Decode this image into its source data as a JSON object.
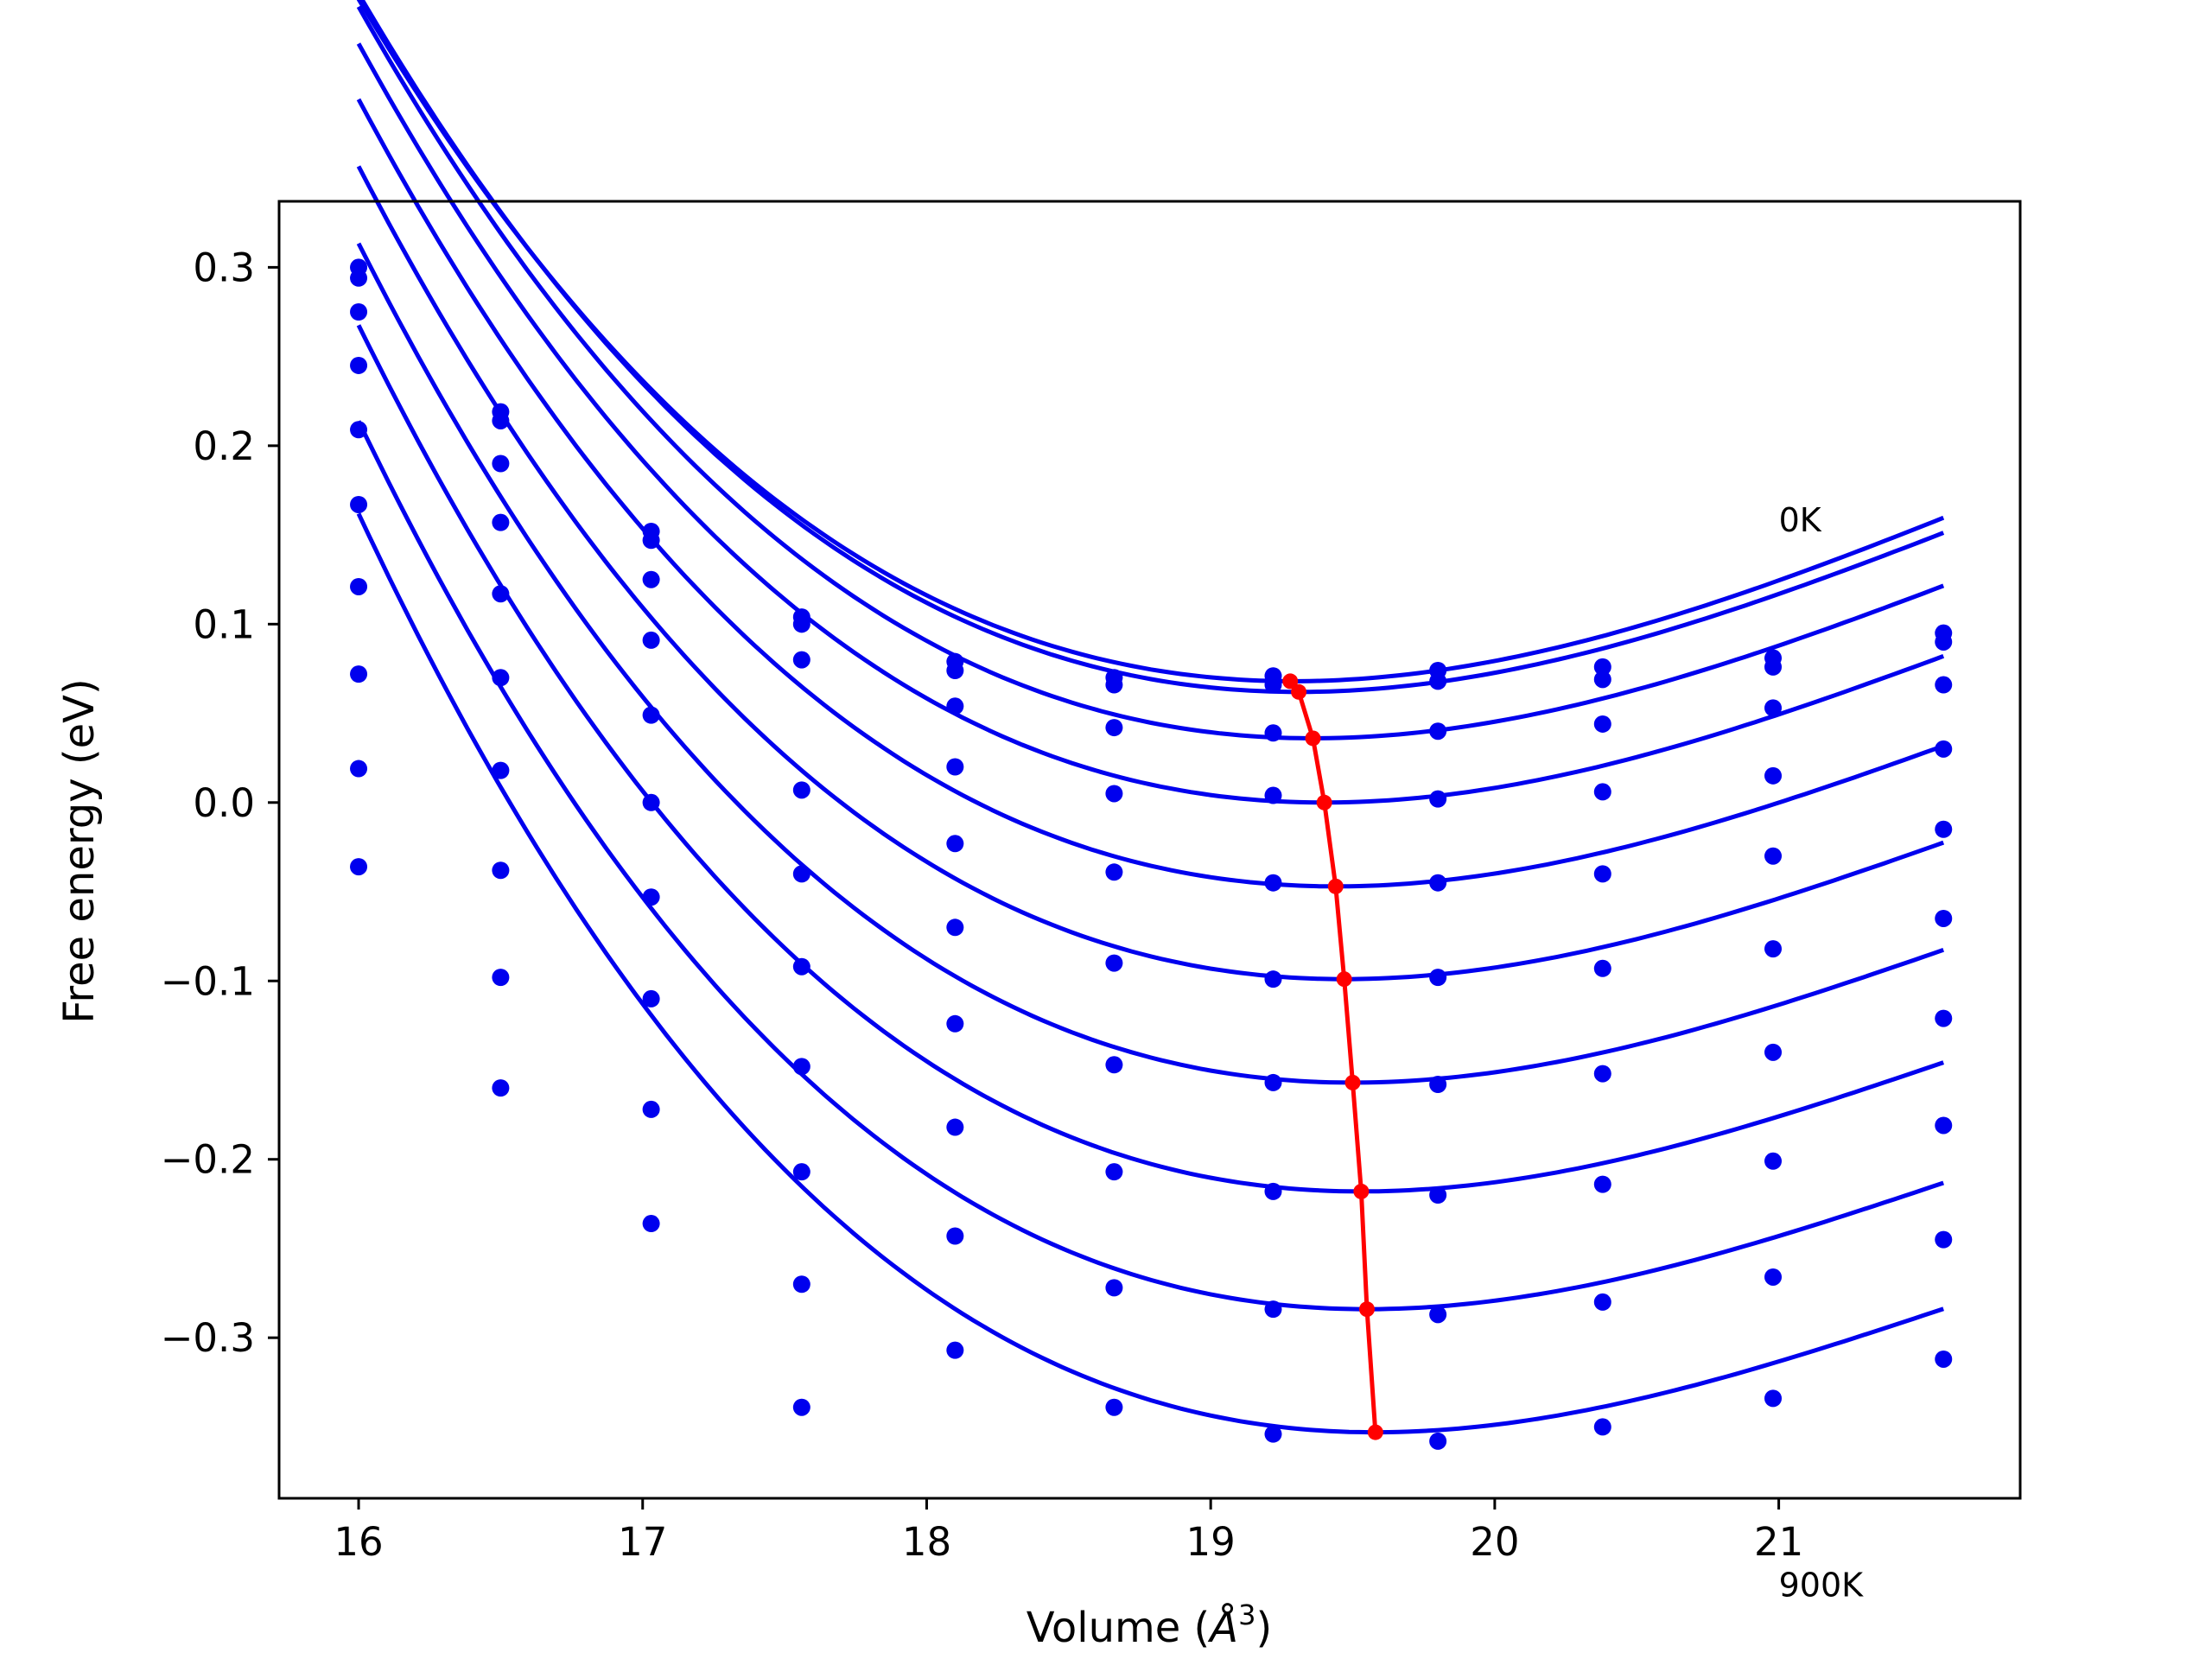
{
  "chart_data": {
    "type": "line",
    "xlabel_main": "Volume (",
    "xlabel_unit": "Å",
    "xlabel_sup": "3",
    "xlabel_end": ")",
    "ylabel": "Free energy (eV)",
    "xlim": [
      15.72,
      21.85
    ],
    "ylim": [
      -0.39,
      0.337
    ],
    "xticks": [
      16,
      17,
      18,
      19,
      20,
      21
    ],
    "xtick_labels": [
      "16",
      "17",
      "18",
      "19",
      "20",
      "21"
    ],
    "yticks": [
      0.3,
      0.2,
      0.1,
      0.0,
      -0.1,
      -0.2,
      -0.3
    ],
    "ytick_labels": [
      "0.3",
      "0.2",
      "0.1",
      "0.0",
      "−0.1",
      "−0.2",
      "−0.3"
    ],
    "annotations": [
      {
        "text": "0K",
        "x": 21.0,
        "y": 0.152
      },
      {
        "text": "900K",
        "x": 21.0,
        "y": -0.445
      }
    ],
    "colors": {
      "series": "#0000ee",
      "minimum": "#ff0000"
    },
    "x": [
      16.0,
      16.5,
      17.03,
      17.56,
      18.1,
      18.66,
      19.22,
      19.8,
      20.38,
      20.98,
      21.58
    ],
    "series": [
      {
        "values": [
          0.3,
          0.219,
          0.152,
          0.104,
          0.079,
          0.07,
          0.071,
          0.074,
          0.076,
          0.081,
          0.095
        ],
        "fit": {
          "vmin": 19.29,
          "emin": 0.068,
          "a": 0.0248,
          "b": -0.0032
        }
      },
      {
        "values": [
          0.294,
          0.214,
          0.147,
          0.1,
          0.074,
          0.066,
          0.066,
          0.068,
          0.069,
          0.076,
          0.09
        ],
        "fit": {
          "vmin": 19.31,
          "emin": 0.062,
          "a": 0.0248,
          "b": -0.0033
        }
      },
      {
        "values": [
          0.275,
          0.19,
          0.125,
          0.08,
          0.054,
          0.042,
          0.039,
          0.04,
          0.044,
          0.053,
          0.066
        ],
        "fit": {
          "vmin": 19.36,
          "emin": 0.036,
          "a": 0.0249,
          "b": -0.0034
        }
      },
      {
        "values": [
          0.245,
          0.157,
          0.091,
          0.007,
          0.02,
          0.005,
          0.004,
          0.002,
          0.006,
          0.015,
          0.03
        ],
        "fit": {
          "vmin": 19.4,
          "emin": 0.0,
          "a": 0.0249,
          "b": -0.0035
        }
      },
      {
        "values": [
          0.209,
          0.117,
          0.049,
          -0.04,
          -0.023,
          -0.039,
          -0.045,
          -0.045,
          -0.04,
          -0.03,
          -0.015
        ],
        "fit": {
          "vmin": 19.44,
          "emin": -0.047,
          "a": 0.0249,
          "b": -0.0036
        }
      },
      {
        "values": [
          0.167,
          0.07,
          0.0,
          -0.092,
          -0.07,
          -0.09,
          -0.099,
          -0.098,
          -0.093,
          -0.082,
          -0.065
        ],
        "fit": {
          "vmin": 19.47,
          "emin": -0.099,
          "a": 0.025,
          "b": -0.0037
        }
      },
      {
        "values": [
          0.121,
          0.018,
          -0.053,
          -0.148,
          -0.124,
          -0.147,
          -0.157,
          -0.158,
          -0.152,
          -0.14,
          -0.121
        ],
        "fit": {
          "vmin": 19.5,
          "emin": -0.157,
          "a": 0.0251,
          "b": -0.0038
        }
      },
      {
        "values": [
          0.072,
          -0.038,
          -0.11,
          -0.207,
          -0.182,
          -0.207,
          -0.218,
          -0.22,
          -0.214,
          -0.201,
          -0.181
        ],
        "fit": {
          "vmin": 19.53,
          "emin": -0.218,
          "a": 0.0252,
          "b": -0.0039
        }
      },
      {
        "values": [
          0.019,
          -0.098,
          -0.172,
          -0.27,
          -0.243,
          -0.272,
          -0.284,
          -0.287,
          -0.28,
          -0.266,
          -0.245
        ],
        "fit": {
          "vmin": 19.55,
          "emin": -0.284,
          "a": 0.0253,
          "b": -0.004
        }
      },
      {
        "values": [
          -0.036,
          -0.16,
          -0.236,
          -0.339,
          -0.307,
          -0.339,
          -0.354,
          -0.358,
          -0.35,
          -0.334,
          -0.312
        ],
        "fit": {
          "vmin": 19.58,
          "emin": -0.353,
          "a": 0.0255,
          "b": -0.0041
        }
      }
    ],
    "minimum_curve": {
      "x": [
        19.28,
        19.31,
        19.36,
        19.4,
        19.44,
        19.47,
        19.5,
        19.53,
        19.55,
        19.58
      ],
      "y": [
        0.068,
        0.062,
        0.036,
        0.0,
        -0.047,
        -0.099,
        -0.157,
        -0.218,
        -0.284,
        -0.353
      ]
    }
  }
}
